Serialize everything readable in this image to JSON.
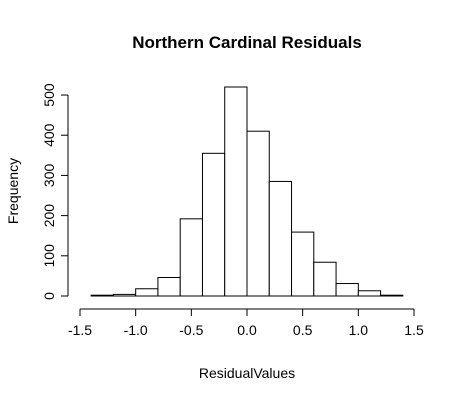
{
  "chart_data": {
    "type": "bar",
    "title": "Northern Cardinal Residuals",
    "xlabel": "ResidualValues",
    "ylabel": "Frequency",
    "bins": [
      {
        "start": -1.4,
        "end": -1.2,
        "count": 2
      },
      {
        "start": -1.2,
        "end": -1.0,
        "count": 4
      },
      {
        "start": -1.0,
        "end": -0.8,
        "count": 18
      },
      {
        "start": -0.8,
        "end": -0.6,
        "count": 46
      },
      {
        "start": -0.6,
        "end": -0.4,
        "count": 192
      },
      {
        "start": -0.4,
        "end": -0.2,
        "count": 355
      },
      {
        "start": -0.2,
        "end": 0.0,
        "count": 520
      },
      {
        "start": 0.0,
        "end": 0.2,
        "count": 410
      },
      {
        "start": 0.2,
        "end": 0.4,
        "count": 285
      },
      {
        "start": 0.4,
        "end": 0.6,
        "count": 159
      },
      {
        "start": 0.6,
        "end": 0.8,
        "count": 84
      },
      {
        "start": 0.8,
        "end": 1.0,
        "count": 31
      },
      {
        "start": 1.0,
        "end": 1.2,
        "count": 13
      },
      {
        "start": 1.2,
        "end": 1.4,
        "count": 2
      }
    ],
    "xlim": [
      -1.5,
      1.5
    ],
    "ylim": [
      0,
      520
    ],
    "xticks": [
      "-1.5",
      "-1.0",
      "-0.5",
      "0.0",
      "0.5",
      "1.0",
      "1.5"
    ],
    "xtick_values": [
      -1.5,
      -1.0,
      -0.5,
      0.0,
      0.5,
      1.0,
      1.5
    ],
    "yticks": [
      "0",
      "100",
      "200",
      "300",
      "400",
      "500"
    ],
    "ytick_values": [
      0,
      100,
      200,
      300,
      400,
      500
    ],
    "grid": false,
    "bar_fill": "#ffffff",
    "bar_stroke": "#000000"
  }
}
